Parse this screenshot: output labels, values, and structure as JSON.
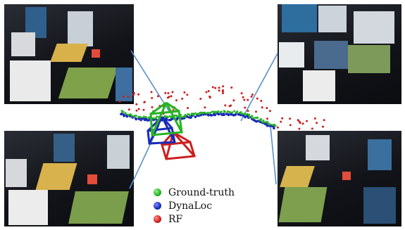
{
  "legend": {
    "items": [
      {
        "label": "Ground-truth",
        "color": "#27b324"
      },
      {
        "label": "DynaLoc",
        "color": "#1a2bb8"
      },
      {
        "label": "RF",
        "color": "#cc1f1f"
      }
    ]
  },
  "photos": [
    {
      "name": "photo-top-left",
      "icon": "scene-photo"
    },
    {
      "name": "photo-top-right",
      "icon": "scene-photo"
    },
    {
      "name": "photo-bottom-left",
      "icon": "scene-photo"
    },
    {
      "name": "photo-bottom-right",
      "icon": "scene-photo"
    }
  ],
  "scene_label": "RF",
  "colors": {
    "leader_line": "#5b8fc9",
    "ground_truth": "#27b324",
    "dynaloc": "#1a2bb8",
    "rf": "#cc1f1f"
  }
}
